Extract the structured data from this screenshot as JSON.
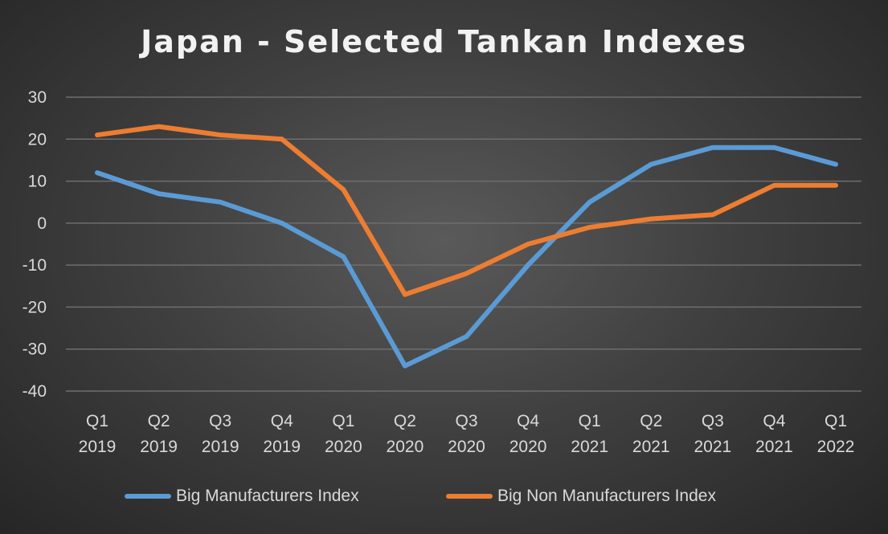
{
  "chart_data": {
    "type": "line",
    "title": "Japan - Selected Tankan Indexes",
    "categories": [
      [
        "Q1",
        "2019"
      ],
      [
        "Q2",
        "2019"
      ],
      [
        "Q3",
        "2019"
      ],
      [
        "Q4",
        "2019"
      ],
      [
        "Q1",
        "2020"
      ],
      [
        "Q2",
        "2020"
      ],
      [
        "Q3",
        "2020"
      ],
      [
        "Q4",
        "2020"
      ],
      [
        "Q1",
        "2021"
      ],
      [
        "Q2",
        "2021"
      ],
      [
        "Q3",
        "2021"
      ],
      [
        "Q4",
        "2021"
      ],
      [
        "Q1",
        "2022"
      ]
    ],
    "series": [
      {
        "name": "Big Manufacturers Index",
        "color": "#5b9bd5",
        "values": [
          12,
          7,
          5,
          0,
          -8,
          -34,
          -27,
          -10,
          5,
          14,
          18,
          18,
          14
        ]
      },
      {
        "name": "Big Non Manufacturers Index",
        "color": "#ed7d31",
        "values": [
          21,
          23,
          21,
          20,
          8,
          -17,
          -12,
          -5,
          -1,
          1,
          2,
          9,
          9
        ]
      }
    ],
    "ylim": [
      -40,
      30
    ],
    "yticks": [
      30,
      20,
      10,
      0,
      -10,
      -20,
      -30,
      -40
    ],
    "grid": true,
    "legend": "bottom",
    "xlabel": "",
    "ylabel": ""
  }
}
